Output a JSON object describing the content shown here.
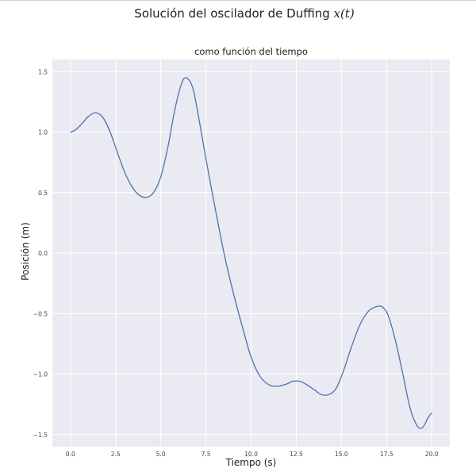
{
  "figure": {
    "suptitle_main": "Solución del oscilador de Duffing ",
    "suptitle_math": "x(t)",
    "subtitle": "como función del tiempo"
  },
  "colors": {
    "plot_background": "#eaeaf2",
    "grid": "#ffffff",
    "line": "#4c72b0"
  },
  "chart_data": {
    "type": "line",
    "title": "como función del tiempo",
    "xlabel": "Tiempo (s)",
    "ylabel": "Posición (m)",
    "xlim": [
      -1,
      21
    ],
    "ylim": [
      -1.6,
      1.6
    ],
    "xticks": [
      0,
      2.5,
      5,
      7.5,
      10,
      12.5,
      15,
      17.5,
      20
    ],
    "xtick_labels": [
      "0.0",
      "2.5",
      "5.0",
      "7.5",
      "10.0",
      "12.5",
      "15.0",
      "17.5",
      "20.0"
    ],
    "yticks": [
      1.5,
      1,
      0.5,
      0,
      -0.5,
      -1,
      -1.5
    ],
    "ytick_labels": [
      "1.5",
      "1.0",
      "0.5",
      "0.0",
      "−0.5",
      "−1.0",
      "−1.5"
    ],
    "grid": true,
    "series": [
      {
        "x": [
          0,
          0.3,
          0.7,
          1.0,
          1.4,
          1.8,
          2.2,
          2.6,
          3.0,
          3.4,
          3.8,
          4.2,
          4.6,
          5.0,
          5.4,
          5.8,
          6.2,
          6.5,
          6.8,
          7.1,
          7.5,
          8.0,
          8.5,
          9.0,
          9.5,
          10.0,
          10.5,
          11.0,
          11.5,
          12.0,
          12.3,
          12.7,
          13.1,
          13.5,
          13.9,
          14.3,
          14.7,
          15.1,
          15.5,
          16.0,
          16.5,
          17.0,
          17.3,
          17.6,
          18.0,
          18.4,
          18.8,
          19.2,
          19.5,
          19.8,
          20.0
        ],
        "y": [
          1.0,
          1.02,
          1.08,
          1.13,
          1.16,
          1.12,
          1.0,
          0.83,
          0.67,
          0.55,
          0.48,
          0.46,
          0.5,
          0.63,
          0.88,
          1.2,
          1.42,
          1.44,
          1.35,
          1.12,
          0.78,
          0.38,
          0.0,
          -0.32,
          -0.6,
          -0.86,
          -1.02,
          -1.09,
          -1.1,
          -1.08,
          -1.06,
          -1.06,
          -1.09,
          -1.13,
          -1.17,
          -1.17,
          -1.12,
          -0.98,
          -0.8,
          -0.6,
          -0.48,
          -0.44,
          -0.45,
          -0.52,
          -0.73,
          -1.0,
          -1.28,
          -1.43,
          -1.44,
          -1.36,
          -1.32
        ]
      }
    ]
  }
}
